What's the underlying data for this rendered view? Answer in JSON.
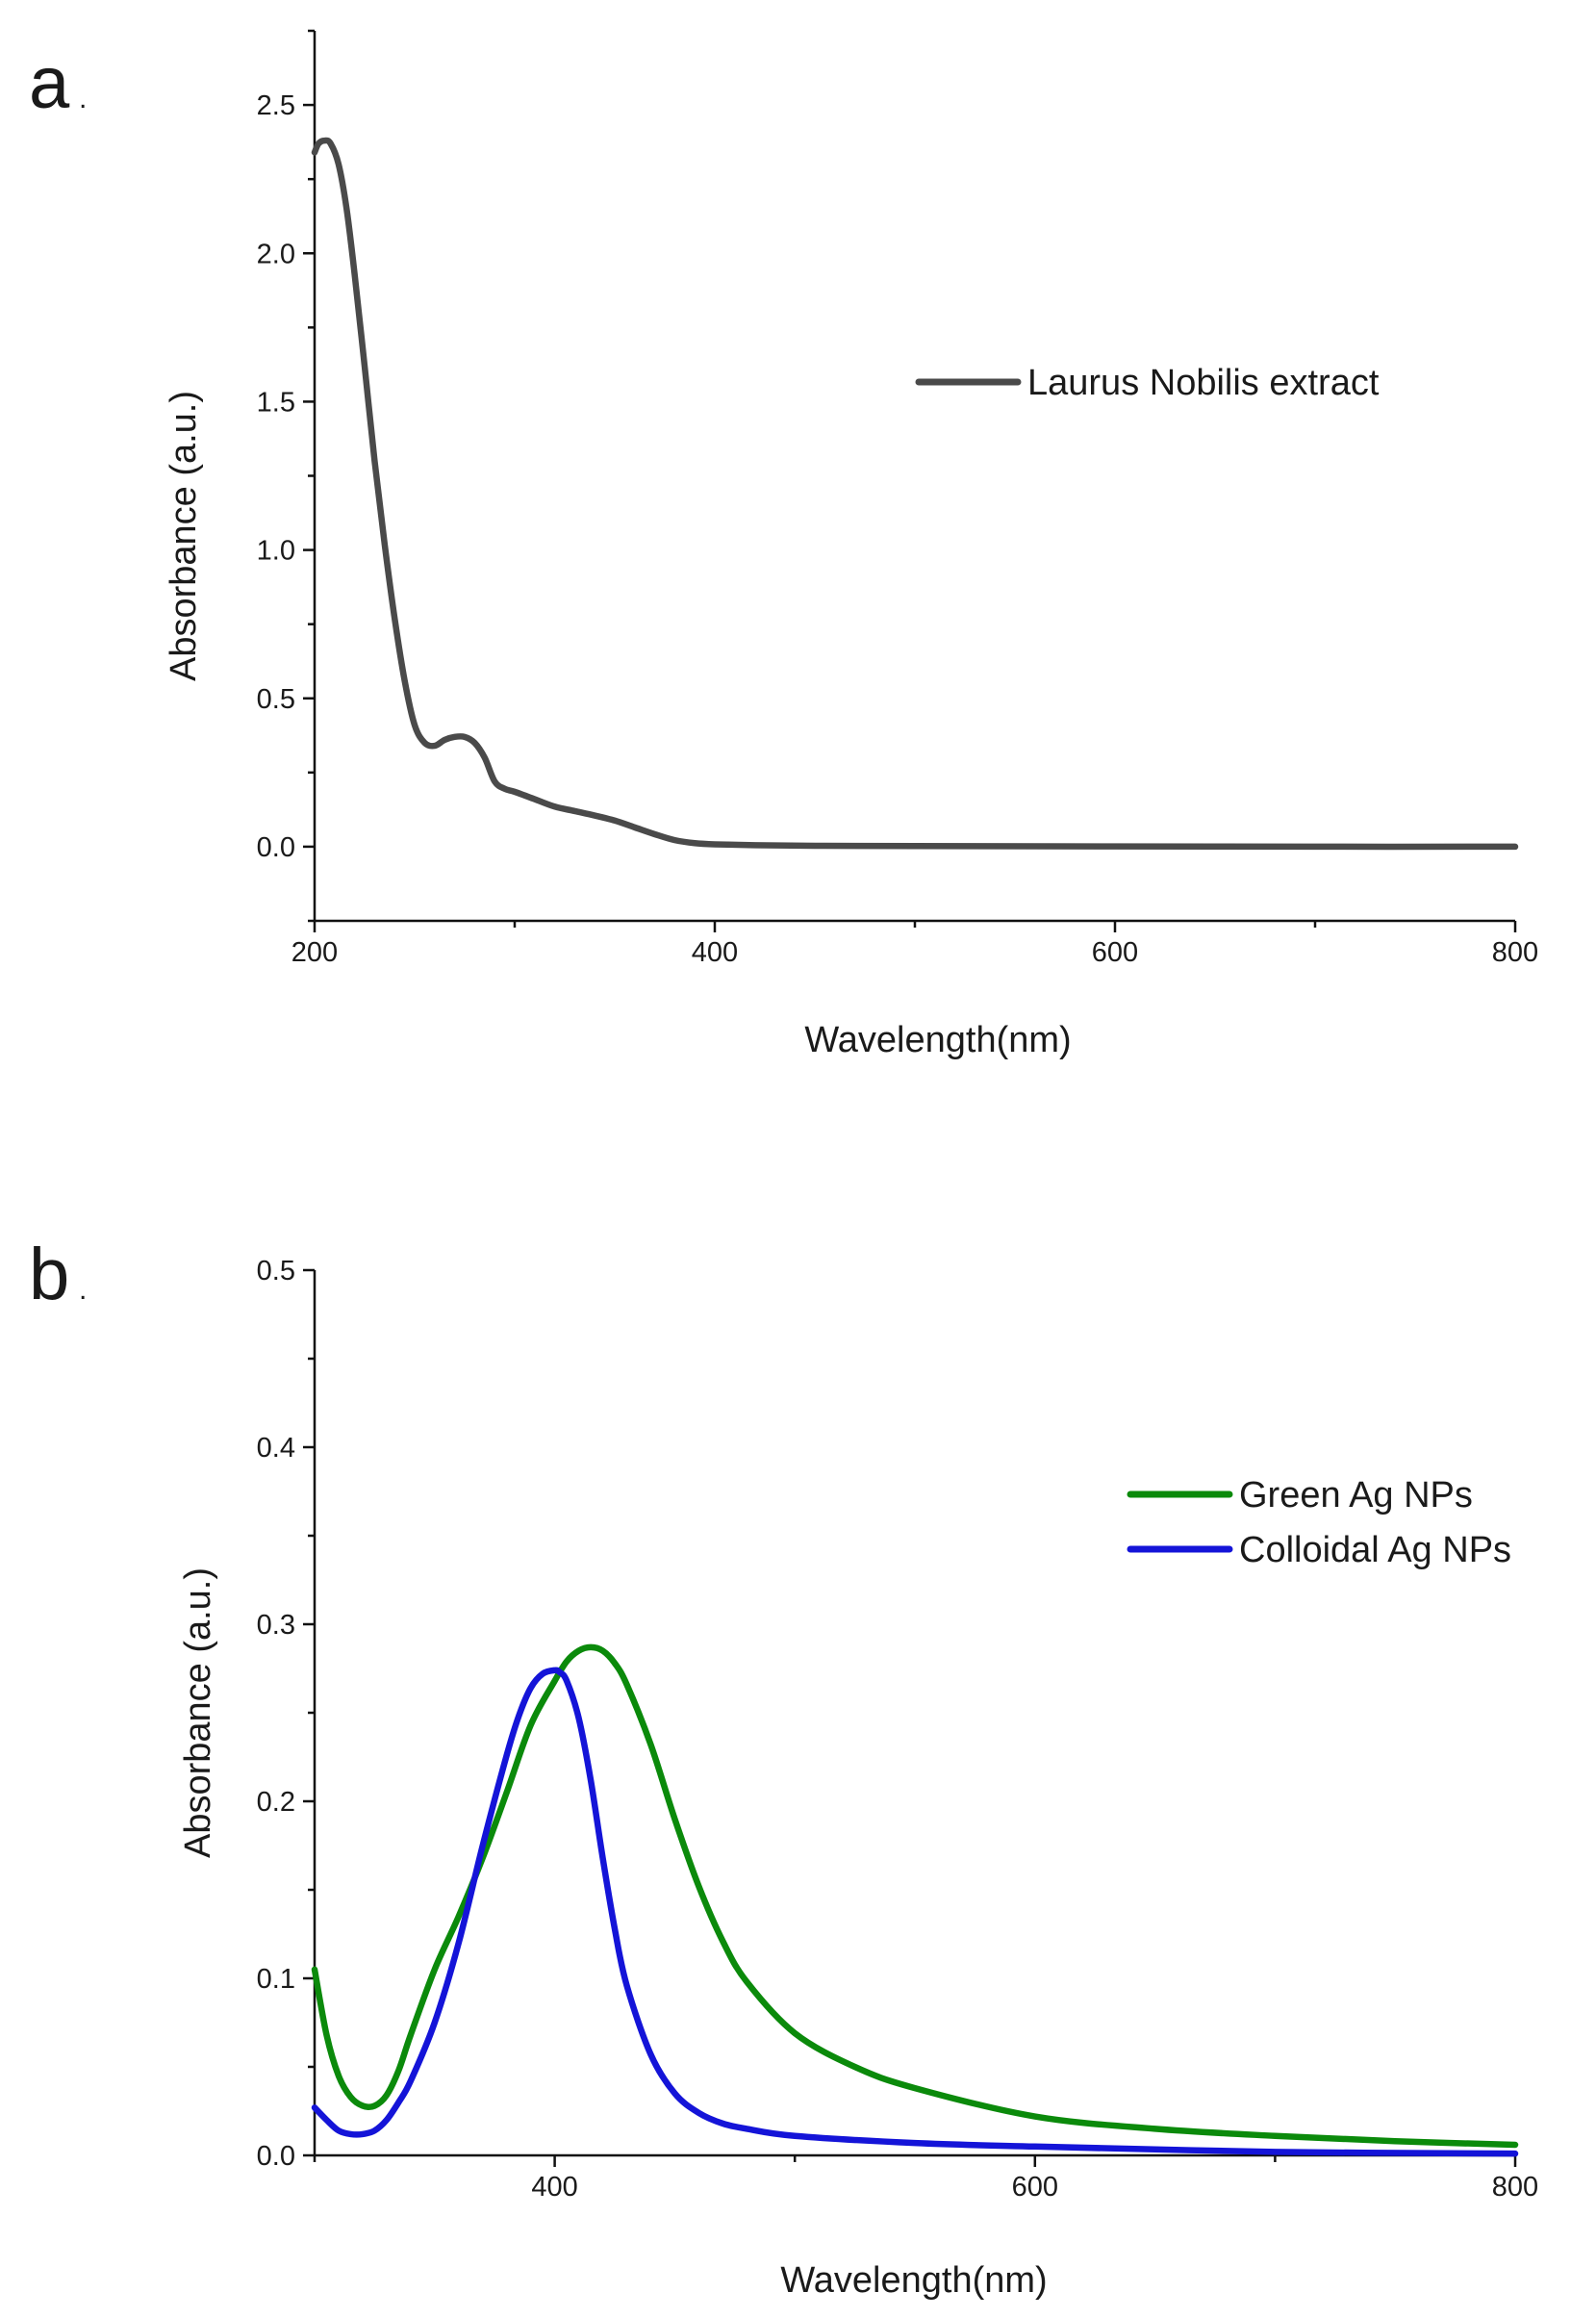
{
  "chart_data": [
    {
      "panel": "a",
      "type": "line",
      "xlabel": "Wavelength(nm)",
      "ylabel": "Absorbance (a.u.)",
      "xlim": [
        200,
        800
      ],
      "ylim": [
        -0.25,
        2.75
      ],
      "x_ticks": [
        200,
        400,
        600,
        800
      ],
      "y_ticks": [
        0.0,
        0.5,
        1.0,
        1.5,
        2.0,
        2.5
      ],
      "y_tick_labels": [
        "0.0",
        "0.5",
        "1.0",
        "1.5",
        "2.0",
        "2.5"
      ],
      "legend_position": "upper-right",
      "series": [
        {
          "name": "Laurus Nobilis extract",
          "color": "#4a4a4a",
          "x": [
            200,
            202,
            205,
            208,
            212,
            216,
            220,
            225,
            230,
            235,
            240,
            245,
            250,
            255,
            260,
            265,
            270,
            275,
            280,
            285,
            290,
            295,
            300,
            310,
            320,
            330,
            340,
            350,
            360,
            370,
            380,
            390,
            400,
            420,
            450,
            500,
            600,
            700,
            800
          ],
          "y": [
            2.34,
            2.37,
            2.38,
            2.37,
            2.3,
            2.15,
            1.93,
            1.62,
            1.3,
            1.02,
            0.77,
            0.56,
            0.41,
            0.35,
            0.34,
            0.36,
            0.37,
            0.37,
            0.35,
            0.3,
            0.22,
            0.195,
            0.185,
            0.16,
            0.135,
            0.12,
            0.105,
            0.088,
            0.065,
            0.042,
            0.022,
            0.012,
            0.008,
            0.005,
            0.003,
            0.002,
            0.001,
            0.0,
            0.0
          ]
        }
      ]
    },
    {
      "panel": "b",
      "type": "line",
      "xlabel": "Wavelength(nm)",
      "ylabel": "Absorbance (a.u.)",
      "xlim": [
        300,
        800
      ],
      "ylim": [
        0.0,
        0.5
      ],
      "x_ticks": [
        400,
        600,
        800
      ],
      "y_ticks": [
        0.0,
        0.1,
        0.2,
        0.3,
        0.4,
        0.5
      ],
      "y_tick_labels": [
        "0.0",
        "0.1",
        "0.2",
        "0.3",
        "0.4",
        "0.5"
      ],
      "legend_position": "upper-right",
      "series": [
        {
          "name": "Green Ag NPs",
          "color": "#0b8a0b",
          "x": [
            300,
            305,
            310,
            315,
            320,
            325,
            330,
            335,
            340,
            350,
            360,
            370,
            380,
            390,
            400,
            405,
            410,
            415,
            420,
            425,
            430,
            440,
            450,
            460,
            470,
            480,
            500,
            525,
            550,
            600,
            650,
            700,
            750,
            800
          ],
          "y": [
            0.105,
            0.068,
            0.045,
            0.033,
            0.028,
            0.028,
            0.034,
            0.048,
            0.068,
            0.105,
            0.135,
            0.168,
            0.205,
            0.243,
            0.268,
            0.279,
            0.285,
            0.287,
            0.285,
            0.278,
            0.266,
            0.232,
            0.19,
            0.152,
            0.121,
            0.098,
            0.069,
            0.05,
            0.038,
            0.022,
            0.015,
            0.011,
            0.008,
            0.006
          ]
        },
        {
          "name": "Colloidal Ag NPs",
          "color": "#1414d8",
          "x": [
            300,
            305,
            310,
            315,
            320,
            325,
            330,
            335,
            340,
            350,
            360,
            370,
            380,
            385,
            390,
            395,
            400,
            402,
            405,
            410,
            415,
            420,
            425,
            430,
            440,
            450,
            460,
            470,
            480,
            500,
            550,
            600,
            700,
            800
          ],
          "y": [
            0.027,
            0.02,
            0.014,
            0.012,
            0.012,
            0.014,
            0.02,
            0.03,
            0.042,
            0.075,
            0.12,
            0.175,
            0.226,
            0.248,
            0.264,
            0.272,
            0.274,
            0.273,
            0.268,
            0.247,
            0.212,
            0.168,
            0.128,
            0.096,
            0.057,
            0.035,
            0.024,
            0.018,
            0.015,
            0.011,
            0.007,
            0.005,
            0.002,
            0.001
          ]
        }
      ]
    }
  ],
  "panels": [
    {
      "letter": "a",
      "dot": "."
    },
    {
      "letter": "b",
      "dot": "."
    }
  ]
}
